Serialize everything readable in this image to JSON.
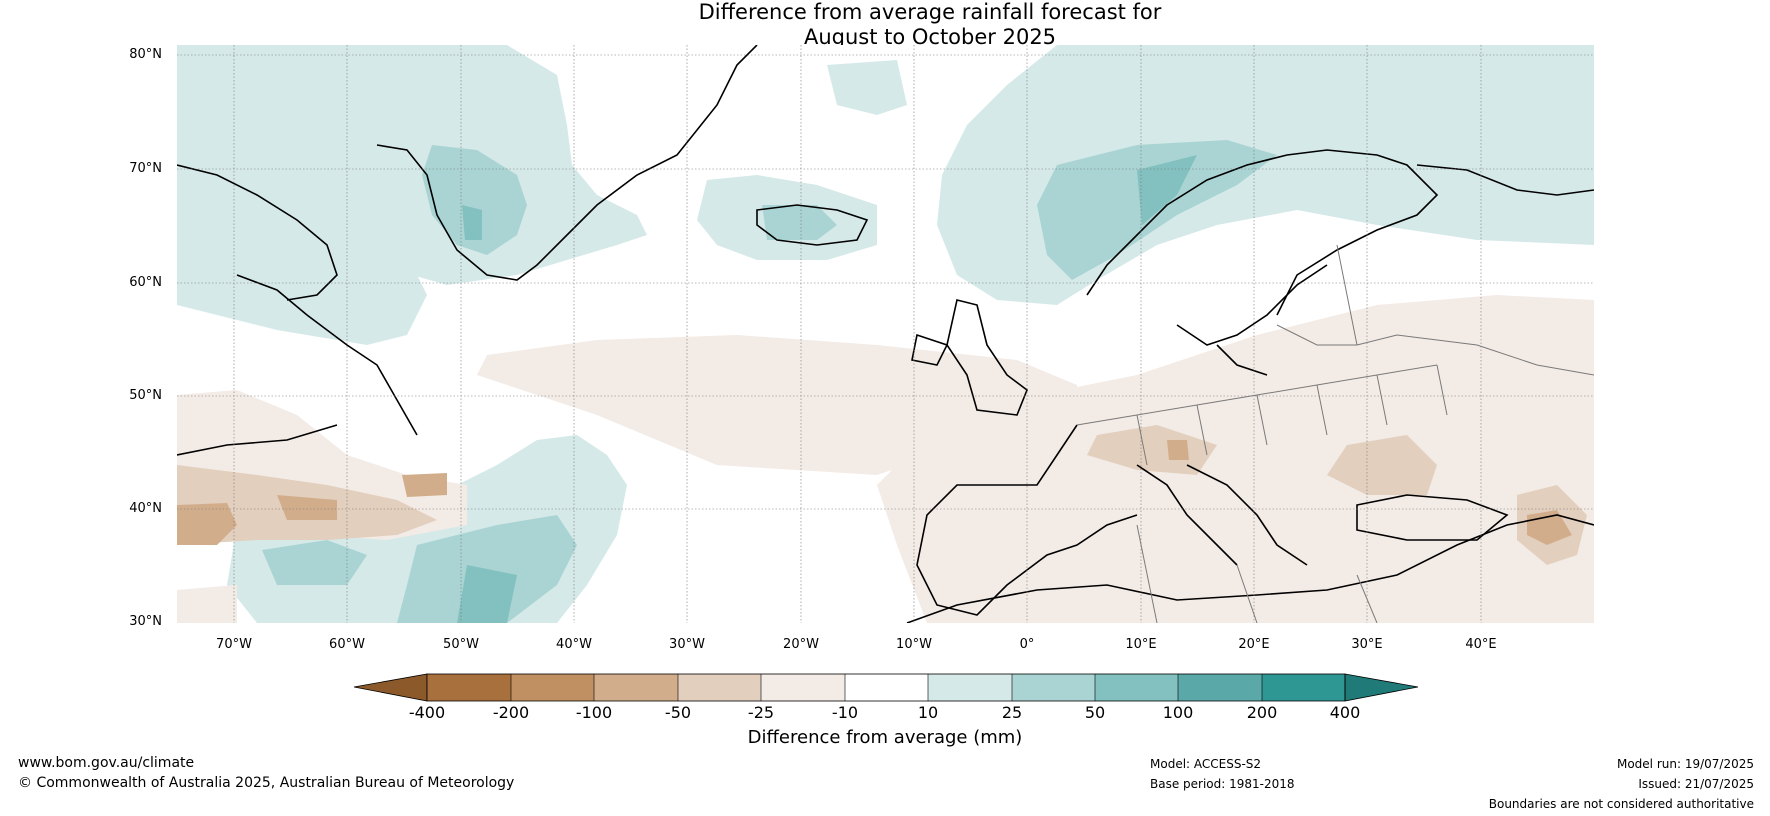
{
  "title_line1": "Difference from average rainfall forecast for",
  "title_line2": "August to October 2025",
  "lat_labels": [
    "80°N",
    "70°N",
    "60°N",
    "50°N",
    "40°N",
    "30°N"
  ],
  "lon_labels": [
    "70°W",
    "60°W",
    "50°W",
    "40°W",
    "30°W",
    "20°W",
    "10°W",
    "0°",
    "10°E",
    "20°E",
    "30°E",
    "40°E"
  ],
  "colorbar": {
    "ticks": [
      "-400",
      "-200",
      "-100",
      "-50",
      "-25",
      "-10",
      "10",
      "25",
      "50",
      "100",
      "200",
      "400"
    ],
    "colors": [
      "#8c5a2a",
      "#a8703d",
      "#c08f62",
      "#d2ad8c",
      "#e3cfbe",
      "#f3ebe6",
      "#ffffff",
      "#d5e9e8",
      "#a9d4d3",
      "#82c1bf",
      "#5aa9a8",
      "#2e9693",
      "#1f7a78"
    ],
    "label": "Difference from average (mm)"
  },
  "footer": {
    "website": "www.bom.gov.au/climate",
    "copyright": "© Commonwealth of Australia 2025, Australian Bureau of Meteorology",
    "model": "Model: ACCESS-S2",
    "base_period": "Base period: 1981-2018",
    "model_run": "Model run: 19/07/2025",
    "issued": "Issued: 21/07/2025",
    "disclaimer": "Boundaries are not considered authoritative"
  }
}
